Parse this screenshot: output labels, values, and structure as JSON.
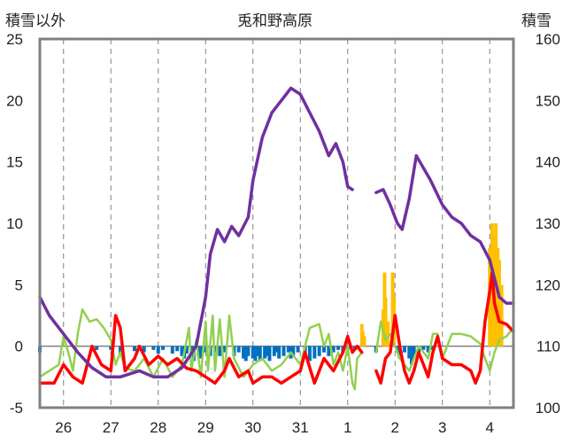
{
  "chart_data": {
    "type": "line",
    "title": "兎和野高原",
    "y_left_label": "積雪以外",
    "y_right_label": "積雪",
    "y_left_ticks": [
      25,
      20,
      15,
      10,
      5,
      0,
      -5
    ],
    "y_left_range": [
      -5,
      25
    ],
    "y_right_ticks": [
      160,
      150,
      140,
      130,
      120,
      110,
      100
    ],
    "y_right_range": [
      100,
      160
    ],
    "x_ticks": [
      "26",
      "27",
      "28",
      "29",
      "30",
      "31",
      "1",
      "2",
      "3",
      "4"
    ],
    "x_range": [
      25.5,
      35.5
    ],
    "grid": "vertical dashed at day boundaries",
    "colors": {
      "snow_depth": "#7030A0",
      "temperature": "#FF0000",
      "humidity_like": "#92D050",
      "precip_pos": "#FFC000",
      "precip_neg": "#0070C0",
      "frame": "#808080"
    },
    "series": [
      {
        "key": "snow_depth",
        "axis": "right",
        "points": [
          [
            25.5,
            118
          ],
          [
            25.7,
            115
          ],
          [
            26.0,
            112
          ],
          [
            26.3,
            109
          ],
          [
            26.6,
            106.5
          ],
          [
            26.9,
            105
          ],
          [
            27.2,
            105
          ],
          [
            27.6,
            106
          ],
          [
            27.9,
            105
          ],
          [
            28.2,
            105
          ],
          [
            28.5,
            106.5
          ],
          [
            28.8,
            110
          ],
          [
            29.0,
            118
          ],
          [
            29.1,
            125
          ],
          [
            29.25,
            129
          ],
          [
            29.4,
            127
          ],
          [
            29.55,
            129.5
          ],
          [
            29.7,
            128
          ],
          [
            29.9,
            131
          ],
          [
            30.0,
            137
          ],
          [
            30.2,
            144
          ],
          [
            30.4,
            148
          ],
          [
            30.6,
            150
          ],
          [
            30.8,
            152
          ],
          [
            31.0,
            151
          ],
          [
            31.2,
            148
          ],
          [
            31.4,
            145
          ],
          [
            31.6,
            141
          ],
          [
            31.75,
            143
          ],
          [
            31.9,
            140
          ],
          [
            32.0,
            136
          ],
          [
            32.1,
            135.5
          ],
          [
            32.5,
            null
          ],
          [
            32.6,
            135
          ],
          [
            32.75,
            135.5
          ],
          [
            32.9,
            133
          ],
          [
            33.05,
            130
          ],
          [
            33.15,
            129
          ],
          [
            33.3,
            134
          ],
          [
            33.45,
            141
          ],
          [
            33.6,
            139
          ],
          [
            33.75,
            137
          ],
          [
            34.0,
            133
          ],
          [
            34.2,
            131
          ],
          [
            34.4,
            130
          ],
          [
            34.6,
            128
          ],
          [
            34.8,
            127
          ],
          [
            35.0,
            124
          ],
          [
            35.2,
            118
          ],
          [
            35.35,
            117
          ],
          [
            35.5,
            117
          ]
        ]
      },
      {
        "key": "temperature",
        "axis": "left",
        "points": [
          [
            25.5,
            -3
          ],
          [
            25.8,
            -3
          ],
          [
            26.0,
            -1.5
          ],
          [
            26.2,
            -2.5
          ],
          [
            26.4,
            -3
          ],
          [
            26.6,
            0
          ],
          [
            26.8,
            -1.5
          ],
          [
            27.0,
            -2
          ],
          [
            27.1,
            2.5
          ],
          [
            27.2,
            1.5
          ],
          [
            27.3,
            -2
          ],
          [
            27.5,
            -1
          ],
          [
            27.6,
            0
          ],
          [
            27.8,
            -1.5
          ],
          [
            28.0,
            -0.8
          ],
          [
            28.2,
            -1.5
          ],
          [
            28.4,
            -1
          ],
          [
            28.6,
            -1.8
          ],
          [
            28.8,
            -2
          ],
          [
            29.0,
            -2.5
          ],
          [
            29.2,
            -3
          ],
          [
            29.4,
            -2
          ],
          [
            29.5,
            -1
          ],
          [
            29.7,
            -2.5
          ],
          [
            29.9,
            -2
          ],
          [
            30.0,
            -3
          ],
          [
            30.2,
            -2.5
          ],
          [
            30.4,
            -2.5
          ],
          [
            30.6,
            -3
          ],
          [
            30.8,
            -2.5
          ],
          [
            31.0,
            -2
          ],
          [
            31.1,
            -0.5
          ],
          [
            31.3,
            -3
          ],
          [
            31.5,
            -1
          ],
          [
            31.7,
            -2
          ],
          [
            31.9,
            -0.5
          ],
          [
            32.0,
            0.8
          ],
          [
            32.1,
            -0.5
          ],
          [
            32.2,
            0
          ],
          [
            32.3,
            -0.5
          ],
          [
            32.5,
            null
          ],
          [
            32.6,
            -2
          ],
          [
            32.7,
            -3
          ],
          [
            32.8,
            -1
          ],
          [
            32.9,
            -0.5
          ],
          [
            33.0,
            2.5
          ],
          [
            33.1,
            0
          ],
          [
            33.2,
            -2
          ],
          [
            33.3,
            -3
          ],
          [
            33.4,
            -2
          ],
          [
            33.5,
            -0.5
          ],
          [
            33.6,
            -1.5
          ],
          [
            33.7,
            -2.5
          ],
          [
            33.8,
            -0.5
          ],
          [
            33.9,
            0.8
          ],
          [
            34.0,
            -1
          ],
          [
            34.2,
            -1.5
          ],
          [
            34.4,
            -1.5
          ],
          [
            34.6,
            -2
          ],
          [
            34.7,
            -3
          ],
          [
            34.8,
            -2
          ],
          [
            34.9,
            2
          ],
          [
            35.0,
            4.5
          ],
          [
            35.05,
            6
          ],
          [
            35.1,
            3.5
          ],
          [
            35.2,
            2
          ],
          [
            35.35,
            1.8
          ],
          [
            35.5,
            1.2
          ]
        ]
      },
      {
        "key": "humidity_like",
        "axis": "left",
        "points": [
          [
            25.5,
            -2.5
          ],
          [
            25.7,
            -2
          ],
          [
            25.9,
            -1.5
          ],
          [
            26.0,
            0.8
          ],
          [
            26.1,
            -0.5
          ],
          [
            26.2,
            -2
          ],
          [
            26.3,
            1
          ],
          [
            26.4,
            3
          ],
          [
            26.55,
            2
          ],
          [
            26.7,
            2.2
          ],
          [
            26.85,
            1.5
          ],
          [
            27.0,
            0.5
          ],
          [
            27.1,
            -1.5
          ],
          [
            27.2,
            -0.5
          ],
          [
            27.3,
            -1.8
          ],
          [
            27.5,
            -2
          ],
          [
            27.7,
            -1
          ],
          [
            27.9,
            -2.5
          ],
          [
            28.1,
            -1
          ],
          [
            28.3,
            -2.5
          ],
          [
            28.5,
            -1.5
          ],
          [
            28.65,
            1.5
          ],
          [
            28.7,
            -2
          ],
          [
            28.8,
            0.5
          ],
          [
            28.9,
            -2.5
          ],
          [
            29.0,
            2
          ],
          [
            29.05,
            -2
          ],
          [
            29.15,
            2.5
          ],
          [
            29.2,
            -2
          ],
          [
            29.3,
            2.2
          ],
          [
            29.4,
            -2.5
          ],
          [
            29.5,
            2.5
          ],
          [
            29.6,
            -1
          ],
          [
            29.8,
            -2.5
          ],
          [
            30.0,
            -1.5
          ],
          [
            30.2,
            -1
          ],
          [
            30.4,
            -2
          ],
          [
            30.6,
            -1.5
          ],
          [
            30.8,
            -0.5
          ],
          [
            31.0,
            -1.5
          ],
          [
            31.2,
            1.5
          ],
          [
            31.4,
            1.8
          ],
          [
            31.5,
            0
          ],
          [
            31.6,
            1
          ],
          [
            31.7,
            -1.5
          ],
          [
            31.8,
            -0.5
          ],
          [
            31.9,
            -2
          ],
          [
            32.0,
            0
          ],
          [
            32.1,
            -3
          ],
          [
            32.15,
            -3.5
          ],
          [
            32.2,
            -1
          ],
          [
            32.3,
            -0.5
          ],
          [
            32.5,
            null
          ],
          [
            32.6,
            -0.5
          ],
          [
            32.7,
            2
          ],
          [
            32.8,
            0.5
          ],
          [
            32.9,
            1
          ],
          [
            33.0,
            0
          ],
          [
            33.1,
            -1
          ],
          [
            33.3,
            -2
          ],
          [
            33.5,
            0
          ],
          [
            33.7,
            -1
          ],
          [
            33.8,
            1
          ],
          [
            33.9,
            1
          ],
          [
            34.0,
            -1
          ],
          [
            34.2,
            1
          ],
          [
            34.4,
            1
          ],
          [
            34.6,
            0.8
          ],
          [
            34.8,
            0.2
          ],
          [
            34.9,
            -1
          ],
          [
            35.0,
            -2
          ],
          [
            35.1,
            -0.5
          ],
          [
            35.2,
            0.5
          ],
          [
            35.35,
            0.8
          ],
          [
            35.5,
            1.5
          ]
        ]
      }
    ],
    "bars_pos": [
      [
        32.3,
        1.8
      ],
      [
        32.32,
        1.2
      ],
      [
        32.35,
        0.8
      ],
      [
        32.75,
        3
      ],
      [
        32.78,
        6
      ],
      [
        32.8,
        4
      ],
      [
        32.85,
        2
      ],
      [
        32.95,
        6
      ],
      [
        32.98,
        4
      ],
      [
        35.0,
        8
      ],
      [
        35.05,
        10
      ],
      [
        35.1,
        9
      ],
      [
        35.13,
        10
      ],
      [
        35.17,
        8
      ],
      [
        35.2,
        7
      ],
      [
        35.25,
        5
      ]
    ],
    "bars_neg": [
      [
        25.5,
        -0.5
      ],
      [
        26.7,
        -0.3
      ],
      [
        27.0,
        -0.3
      ],
      [
        27.2,
        -0.6
      ],
      [
        27.5,
        -0.4
      ],
      [
        27.7,
        -0.5
      ],
      [
        27.9,
        -0.3
      ],
      [
        28.0,
        -0.6
      ],
      [
        28.1,
        -0.3
      ],
      [
        28.3,
        -0.6
      ],
      [
        28.4,
        -0.4
      ],
      [
        28.5,
        -0.8
      ],
      [
        28.55,
        -1
      ],
      [
        28.6,
        -0.6
      ],
      [
        28.7,
        -0.5
      ],
      [
        28.75,
        -1.2
      ],
      [
        28.85,
        -0.8
      ],
      [
        28.9,
        -1
      ],
      [
        29.0,
        -0.5
      ],
      [
        29.1,
        -0.8
      ],
      [
        29.2,
        -0.5
      ],
      [
        29.3,
        -0.8
      ],
      [
        29.4,
        -0.5
      ],
      [
        29.6,
        -0.8
      ],
      [
        29.7,
        -0.5
      ],
      [
        29.8,
        -1
      ],
      [
        29.85,
        -1.2
      ],
      [
        29.9,
        -0.8
      ],
      [
        30.0,
        -1
      ],
      [
        30.05,
        -1.2
      ],
      [
        30.1,
        -0.8
      ],
      [
        30.15,
        -1.2
      ],
      [
        30.25,
        -1
      ],
      [
        30.3,
        -0.8
      ],
      [
        30.35,
        -1.2
      ],
      [
        30.45,
        -0.8
      ],
      [
        30.5,
        -0.5
      ],
      [
        30.55,
        -1
      ],
      [
        30.65,
        -0.8
      ],
      [
        30.75,
        -0.5
      ],
      [
        30.8,
        -1
      ],
      [
        30.85,
        -0.8
      ],
      [
        30.95,
        -0.5
      ],
      [
        31.1,
        -0.8
      ],
      [
        31.2,
        -1.2
      ],
      [
        31.3,
        -1
      ],
      [
        31.4,
        -0.8
      ],
      [
        31.5,
        -0.5
      ],
      [
        31.6,
        -0.8
      ],
      [
        31.7,
        -0.5
      ],
      [
        31.8,
        -0.3
      ],
      [
        31.9,
        -0.5
      ],
      [
        32.0,
        -0.3
      ],
      [
        32.15,
        -0.3
      ],
      [
        32.6,
        -0.5
      ],
      [
        33.05,
        -0.5
      ],
      [
        33.1,
        -1
      ],
      [
        33.2,
        -0.5
      ],
      [
        33.3,
        -1
      ],
      [
        33.35,
        -1.5
      ],
      [
        33.4,
        -0.8
      ],
      [
        33.5,
        -0.5
      ],
      [
        33.6,
        -0.3
      ],
      [
        33.7,
        -0.5
      ],
      [
        33.8,
        -0.3
      ]
    ]
  }
}
